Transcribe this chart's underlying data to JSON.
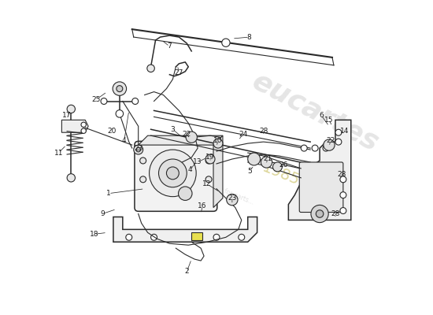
{
  "background_color": "#ffffff",
  "line_color": "#2a2a2a",
  "label_color": "#1a1a1a",
  "label_fontsize": 6.5,
  "watermark_color": "#cccccc",
  "watermark_year_color": "#d4cc80",
  "fig_width": 5.5,
  "fig_height": 4.0,
  "xlim": [
    0,
    11
  ],
  "ylim": [
    0,
    10
  ],
  "labels": [
    [
      "1",
      2.05,
      3.85
    ],
    [
      "2",
      4.55,
      1.35
    ],
    [
      "3",
      4.1,
      5.9
    ],
    [
      "4",
      2.55,
      5.55
    ],
    [
      "4",
      4.65,
      4.6
    ],
    [
      "5",
      6.55,
      4.55
    ],
    [
      "6",
      8.85,
      6.35
    ],
    [
      "7",
      4.0,
      8.55
    ],
    [
      "8",
      6.55,
      8.85
    ],
    [
      "9",
      1.85,
      3.2
    ],
    [
      "10",
      5.55,
      5.55
    ],
    [
      "11",
      0.45,
      5.15
    ],
    [
      "12",
      5.2,
      4.15
    ],
    [
      "13",
      4.9,
      4.85
    ],
    [
      "14",
      9.6,
      5.85
    ],
    [
      "15",
      9.1,
      6.2
    ],
    [
      "16",
      5.05,
      3.45
    ],
    [
      "17",
      0.7,
      6.35
    ],
    [
      "18",
      1.6,
      2.55
    ],
    [
      "19",
      5.3,
      5.0
    ],
    [
      "20",
      2.15,
      5.85
    ],
    [
      "21",
      7.15,
      4.95
    ],
    [
      "22",
      4.55,
      5.75
    ],
    [
      "22",
      9.15,
      5.55
    ],
    [
      "23",
      3.0,
      5.3
    ],
    [
      "23",
      6.0,
      3.7
    ],
    [
      "24",
      6.35,
      5.75
    ],
    [
      "25",
      1.65,
      6.85
    ],
    [
      "26",
      7.65,
      4.75
    ],
    [
      "27",
      4.3,
      7.7
    ],
    [
      "28",
      7.0,
      5.85
    ],
    [
      "28",
      9.5,
      4.45
    ],
    [
      "28",
      9.3,
      3.2
    ]
  ]
}
